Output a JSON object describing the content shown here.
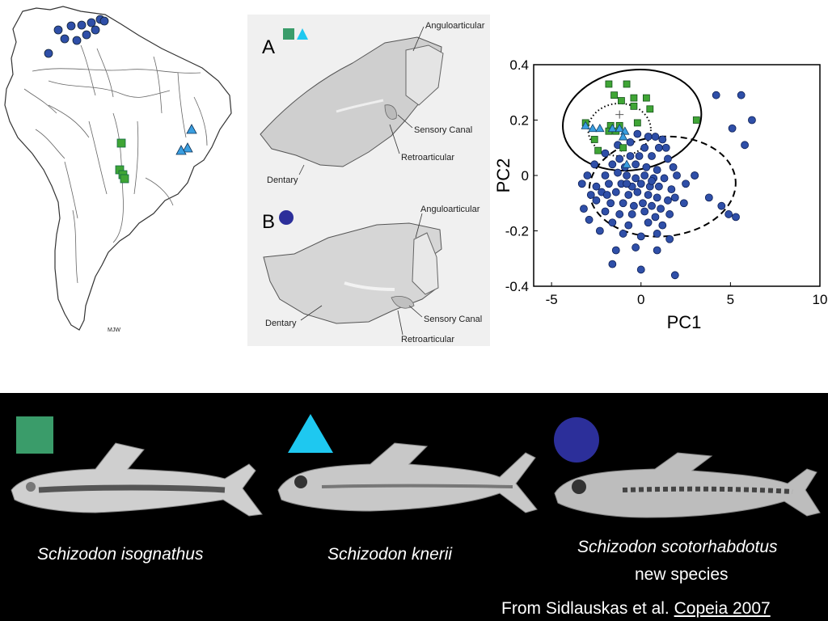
{
  "map": {
    "signature": "MJW",
    "colors": {
      "circle": "#2f4fa8",
      "square": "#3fa535",
      "triangle": "#3a9ee0"
    },
    "circle_points": [
      [
        72,
        37
      ],
      [
        88,
        32
      ],
      [
        101,
        31
      ],
      [
        113,
        28
      ],
      [
        124,
        24
      ],
      [
        80,
        48
      ],
      [
        95,
        50
      ],
      [
        107,
        43
      ],
      [
        118,
        37
      ],
      [
        129,
        26
      ],
      [
        60,
        66
      ]
    ],
    "square_points": [
      [
        150,
        177
      ],
      [
        148,
        210
      ],
      [
        152,
        216
      ],
      [
        154,
        221
      ]
    ],
    "triangle_points": [
      [
        237,
        160
      ],
      [
        232,
        183
      ],
      [
        224,
        186
      ]
    ]
  },
  "jaws": {
    "label_a": "A",
    "label_b": "B",
    "a_labels": {
      "anguloarticular": "Anguloarticular",
      "sensory": "Sensory Canal",
      "retroarticular": "Retroarticular",
      "dentary": "Dentary"
    },
    "b_labels": {
      "anguloarticular": "Anguloarticular",
      "sensory": "Sensory Canal",
      "retroarticular": "Retroarticular",
      "dentary": "Dentary"
    },
    "colors": {
      "square": "#3a9c6a",
      "triangle": "#1ec8f0",
      "circle": "#2c2f9a"
    }
  },
  "chart_data": {
    "type": "scatter",
    "xlabel": "PC1",
    "ylabel": "PC2",
    "xlim": [
      -6,
      10
    ],
    "ylim": [
      -0.4,
      0.4
    ],
    "xticks": [
      "-5",
      "0",
      "5",
      "10"
    ],
    "yticks": [
      "0.4",
      "0.2",
      "0",
      "-0.2",
      "-0.4"
    ],
    "colors": {
      "square": "#3fa535",
      "triangle": "#3a9ee0",
      "circle": "#2f4fa8"
    },
    "series": [
      {
        "marker": "square",
        "points": [
          [
            -1.8,
            0.33
          ],
          [
            -0.8,
            0.33
          ],
          [
            -1.5,
            0.29
          ],
          [
            -1.1,
            0.27
          ],
          [
            -0.4,
            0.28
          ],
          [
            0.3,
            0.28
          ],
          [
            -0.4,
            0.25
          ],
          [
            0.5,
            0.24
          ],
          [
            -3.1,
            0.19
          ],
          [
            -1.7,
            0.18
          ],
          [
            -1.2,
            0.18
          ],
          [
            -0.2,
            0.19
          ],
          [
            -2.6,
            0.13
          ],
          [
            -1.8,
            0.16
          ],
          [
            -1.4,
            0.16
          ],
          [
            3.1,
            0.2
          ],
          [
            -2.4,
            0.09
          ],
          [
            -1.0,
            0.1
          ]
        ]
      },
      {
        "marker": "triangle",
        "points": [
          [
            -3.1,
            0.18
          ],
          [
            -2.7,
            0.17
          ],
          [
            -2.3,
            0.17
          ],
          [
            -1.6,
            0.17
          ],
          [
            -1.2,
            0.17
          ],
          [
            -0.9,
            0.16
          ],
          [
            -1.0,
            0.14
          ],
          [
            -0.8,
            0.04
          ]
        ]
      },
      {
        "marker": "circle",
        "points": [
          [
            -0.2,
            0.15
          ],
          [
            0.4,
            0.14
          ],
          [
            0.8,
            0.14
          ],
          [
            1.2,
            0.13
          ],
          [
            -0.6,
            0.12
          ],
          [
            0.2,
            0.1
          ],
          [
            1.0,
            0.1
          ],
          [
            1.4,
            0.1
          ],
          [
            -1.3,
            0.11
          ],
          [
            -2.0,
            0.08
          ],
          [
            -0.6,
            0.07
          ],
          [
            0.6,
            0.07
          ],
          [
            1.5,
            0.06
          ],
          [
            -2.6,
            0.04
          ],
          [
            -1.6,
            0.04
          ],
          [
            -0.9,
            0.03
          ],
          [
            -0.3,
            0.04
          ],
          [
            0.3,
            0.03
          ],
          [
            0.9,
            0.02
          ],
          [
            1.8,
            0.03
          ],
          [
            -3.0,
            0.0
          ],
          [
            -2.0,
            0.0
          ],
          [
            -1.3,
            0.01
          ],
          [
            -0.8,
            0.0
          ],
          [
            -0.3,
            -0.01
          ],
          [
            0.2,
            0.0
          ],
          [
            0.7,
            -0.01
          ],
          [
            1.3,
            -0.01
          ],
          [
            2.0,
            0.0
          ],
          [
            3.0,
            0.0
          ],
          [
            -3.3,
            -0.03
          ],
          [
            -2.5,
            -0.04
          ],
          [
            -1.8,
            -0.03
          ],
          [
            -1.1,
            -0.03
          ],
          [
            -0.5,
            -0.04
          ],
          [
            0.0,
            -0.03
          ],
          [
            0.5,
            -0.04
          ],
          [
            1.0,
            -0.04
          ],
          [
            1.7,
            -0.05
          ],
          [
            -2.2,
            -0.06
          ],
          [
            -1.4,
            -0.06
          ],
          [
            -0.7,
            -0.07
          ],
          [
            -0.2,
            -0.06
          ],
          [
            0.4,
            -0.07
          ],
          [
            0.9,
            -0.08
          ],
          [
            1.5,
            -0.09
          ],
          [
            -2.5,
            -0.09
          ],
          [
            -1.7,
            -0.1
          ],
          [
            -1.0,
            -0.1
          ],
          [
            -0.4,
            -0.11
          ],
          [
            0.1,
            -0.1
          ],
          [
            0.6,
            -0.11
          ],
          [
            1.1,
            -0.12
          ],
          [
            2.4,
            -0.1
          ],
          [
            -3.2,
            -0.12
          ],
          [
            -2.0,
            -0.13
          ],
          [
            -1.2,
            -0.14
          ],
          [
            -0.5,
            -0.14
          ],
          [
            0.2,
            -0.13
          ],
          [
            0.8,
            -0.15
          ],
          [
            1.6,
            -0.14
          ],
          [
            -2.9,
            -0.16
          ],
          [
            -1.6,
            -0.17
          ],
          [
            -0.7,
            -0.18
          ],
          [
            0.4,
            -0.17
          ],
          [
            1.2,
            -0.18
          ],
          [
            -2.3,
            -0.2
          ],
          [
            -1.0,
            -0.21
          ],
          [
            0.0,
            -0.22
          ],
          [
            0.9,
            -0.21
          ],
          [
            1.6,
            -0.23
          ],
          [
            -1.4,
            -0.27
          ],
          [
            -0.3,
            -0.26
          ],
          [
            0.9,
            -0.27
          ],
          [
            -1.6,
            -0.32
          ],
          [
            0.0,
            -0.34
          ],
          [
            1.9,
            -0.36
          ],
          [
            4.2,
            0.29
          ],
          [
            5.6,
            0.29
          ],
          [
            6.2,
            0.2
          ],
          [
            5.1,
            0.17
          ],
          [
            5.8,
            0.11
          ],
          [
            3.0,
            0.0
          ],
          [
            4.5,
            -0.11
          ],
          [
            4.9,
            -0.14
          ],
          [
            5.3,
            -0.15
          ],
          [
            3.8,
            -0.08
          ],
          [
            -0.8,
            -0.03
          ],
          [
            -0.1,
            0.07
          ],
          [
            0.6,
            -0.02
          ],
          [
            -1.9,
            -0.07
          ],
          [
            -2.8,
            -0.07
          ],
          [
            1.9,
            -0.08
          ],
          [
            2.5,
            -0.03
          ],
          [
            -1.2,
            0.06
          ]
        ]
      }
    ],
    "ellipses": [
      {
        "style": "solid",
        "cx": -0.5,
        "cy": 0.2,
        "rx": 3.9,
        "ry": 0.18,
        "angle_deg": 10
      },
      {
        "style": "dotted",
        "cx": -1.2,
        "cy": 0.165,
        "rx": 1.75,
        "ry": 0.095,
        "angle_deg": 0
      },
      {
        "style": "dashed",
        "cx": 1.2,
        "cy": -0.04,
        "rx": 4.1,
        "ry": 0.18,
        "angle_deg": 5
      }
    ],
    "centroids": [
      [
        -1.2,
        0.22
      ],
      [
        -1.1,
        0.1
      ]
    ]
  },
  "fish": [
    {
      "species": "Schizodon isognathus",
      "shape": "square",
      "color": "#3a9c6a"
    },
    {
      "species": "Schizodon knerii",
      "shape": "triangle",
      "color": "#1ec8f0"
    },
    {
      "species": "Schizodon scotorhabdotus",
      "shape": "circle",
      "color": "#2c2f9a",
      "note": "new species"
    }
  ],
  "credit": {
    "prefix": "From Sidlauskas et al.",
    "journal": "Copeia 2007"
  }
}
